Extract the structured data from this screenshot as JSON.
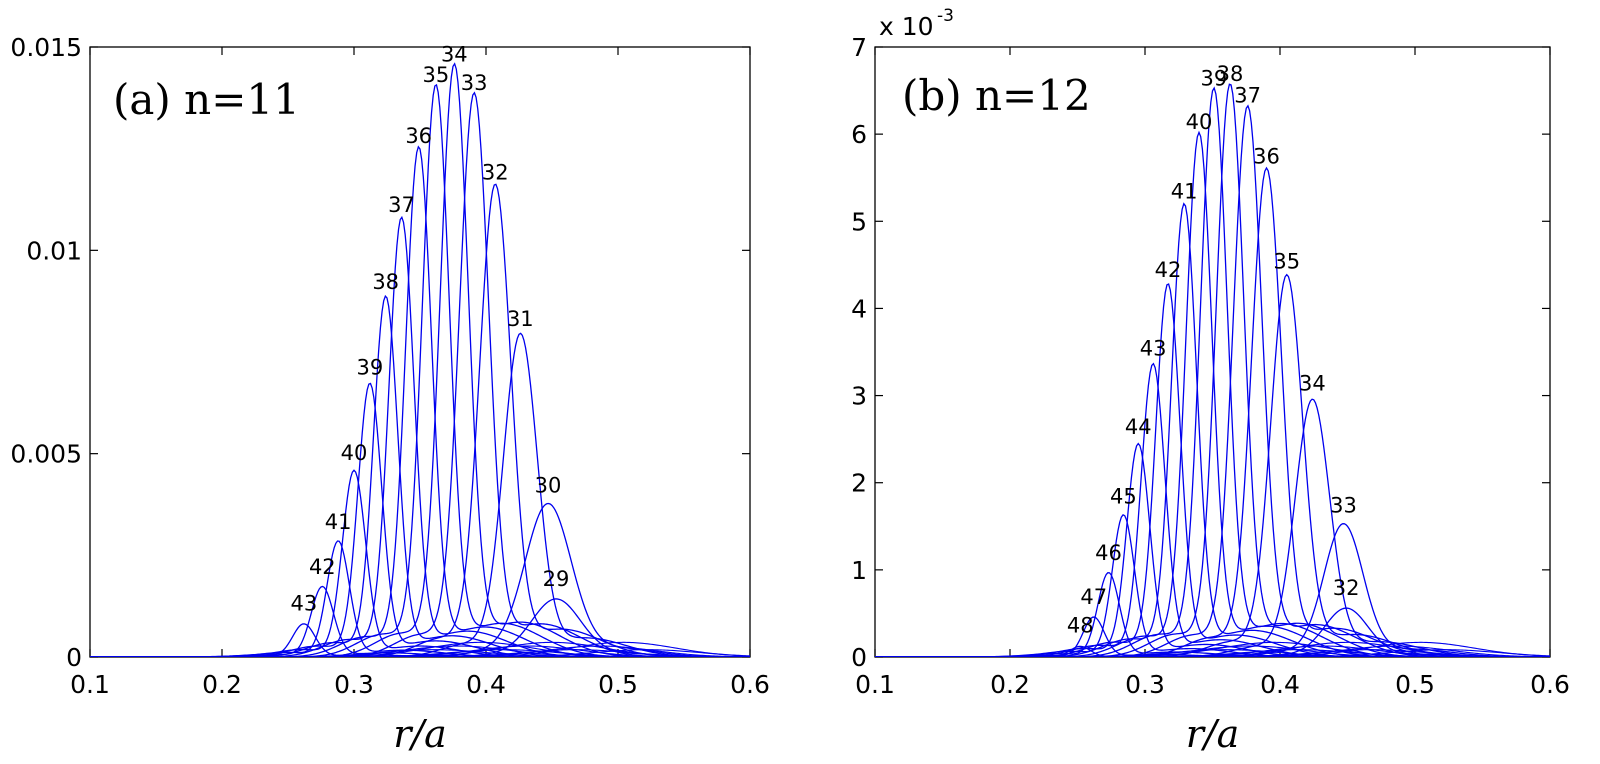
{
  "chart_data": [
    {
      "type": "line",
      "title": "(a) n=11",
      "xlabel": "r/a",
      "ylabel": "",
      "xlim": [
        0.1,
        0.6
      ],
      "ylim": [
        0,
        0.015
      ],
      "x_ticks": [
        "0.1",
        "0.2",
        "0.3",
        "0.4",
        "0.5",
        "0.6"
      ],
      "y_ticks": [
        "0",
        "0.005",
        "0.01",
        "0.015"
      ],
      "y_multiplier": "",
      "line_color": "#0000ee",
      "grid": false,
      "series": [
        {
          "name": "43",
          "peak_x": 0.262,
          "peak_y": 0.0008,
          "width": 0.0085
        },
        {
          "name": "42",
          "peak_x": 0.276,
          "peak_y": 0.0017,
          "width": 0.0085
        },
        {
          "name": "41",
          "peak_x": 0.288,
          "peak_y": 0.0028,
          "width": 0.0085
        },
        {
          "name": "40",
          "peak_x": 0.3,
          "peak_y": 0.0045,
          "width": 0.0088
        },
        {
          "name": "39",
          "peak_x": 0.312,
          "peak_y": 0.0066,
          "width": 0.009
        },
        {
          "name": "38",
          "peak_x": 0.324,
          "peak_y": 0.0087,
          "width": 0.0092
        },
        {
          "name": "37",
          "peak_x": 0.336,
          "peak_y": 0.0106,
          "width": 0.0095
        },
        {
          "name": "36",
          "peak_x": 0.349,
          "peak_y": 0.0123,
          "width": 0.0098
        },
        {
          "name": "35",
          "peak_x": 0.362,
          "peak_y": 0.0138,
          "width": 0.0102
        },
        {
          "name": "34",
          "peak_x": 0.376,
          "peak_y": 0.0143,
          "width": 0.0106
        },
        {
          "name": "33",
          "peak_x": 0.391,
          "peak_y": 0.0136,
          "width": 0.0111
        },
        {
          "name": "32",
          "peak_x": 0.407,
          "peak_y": 0.0114,
          "width": 0.0118
        },
        {
          "name": "31",
          "peak_x": 0.426,
          "peak_y": 0.0078,
          "width": 0.0128
        },
        {
          "name": "30",
          "peak_x": 0.447,
          "peak_y": 0.0037,
          "width": 0.0175
        },
        {
          "name": "29",
          "peak_x": 0.453,
          "peak_y": 0.0014,
          "width": 0.0185
        }
      ],
      "peak_labels": [
        "43",
        "42",
        "41",
        "40",
        "39",
        "38",
        "37",
        "36",
        "35",
        "34",
        "33",
        "32",
        "31",
        "30",
        "29"
      ]
    },
    {
      "type": "line",
      "title": "(b) n=12",
      "xlabel": "r/a",
      "ylabel": "",
      "xlim": [
        0.1,
        0.6
      ],
      "ylim": [
        0,
        0.007
      ],
      "x_ticks": [
        "0.1",
        "0.2",
        "0.3",
        "0.4",
        "0.5",
        "0.6"
      ],
      "y_ticks": [
        "0",
        "1",
        "2",
        "3",
        "4",
        "5",
        "6",
        "7"
      ],
      "y_multiplier": "x 10",
      "y_multiplier_exp": "-3",
      "line_color": "#0000ee",
      "grid": false,
      "series": [
        {
          "name": "48",
          "peak_x": 0.252,
          "peak_y": 0.00012,
          "width": 0.0075
        },
        {
          "name": "47",
          "peak_x": 0.262,
          "peak_y": 0.00045,
          "width": 0.0078
        },
        {
          "name": "46",
          "peak_x": 0.273,
          "peak_y": 0.00095,
          "width": 0.008
        },
        {
          "name": "45",
          "peak_x": 0.284,
          "peak_y": 0.0016,
          "width": 0.0082
        },
        {
          "name": "44",
          "peak_x": 0.295,
          "peak_y": 0.0024,
          "width": 0.0085
        },
        {
          "name": "43",
          "peak_x": 0.306,
          "peak_y": 0.0033,
          "width": 0.0088
        },
        {
          "name": "42",
          "peak_x": 0.317,
          "peak_y": 0.0042,
          "width": 0.009
        },
        {
          "name": "41",
          "peak_x": 0.329,
          "peak_y": 0.0051,
          "width": 0.0093
        },
        {
          "name": "40",
          "peak_x": 0.34,
          "peak_y": 0.0059,
          "width": 0.0096
        },
        {
          "name": "39",
          "peak_x": 0.351,
          "peak_y": 0.0064,
          "width": 0.0099
        },
        {
          "name": "38",
          "peak_x": 0.363,
          "peak_y": 0.00645,
          "width": 0.0102
        },
        {
          "name": "37",
          "peak_x": 0.376,
          "peak_y": 0.0062,
          "width": 0.0106
        },
        {
          "name": "36",
          "peak_x": 0.39,
          "peak_y": 0.0055,
          "width": 0.011
        },
        {
          "name": "35",
          "peak_x": 0.405,
          "peak_y": 0.0043,
          "width": 0.0118
        },
        {
          "name": "34",
          "peak_x": 0.424,
          "peak_y": 0.0029,
          "width": 0.0128
        },
        {
          "name": "33",
          "peak_x": 0.447,
          "peak_y": 0.0015,
          "width": 0.0145
        },
        {
          "name": "32",
          "peak_x": 0.449,
          "peak_y": 0.00055,
          "width": 0.016
        }
      ],
      "peak_labels": [
        "48",
        "47",
        "46",
        "45",
        "44",
        "43",
        "42",
        "41",
        "40",
        "39",
        "38",
        "37",
        "36",
        "35",
        "34",
        "33",
        "32"
      ]
    }
  ]
}
